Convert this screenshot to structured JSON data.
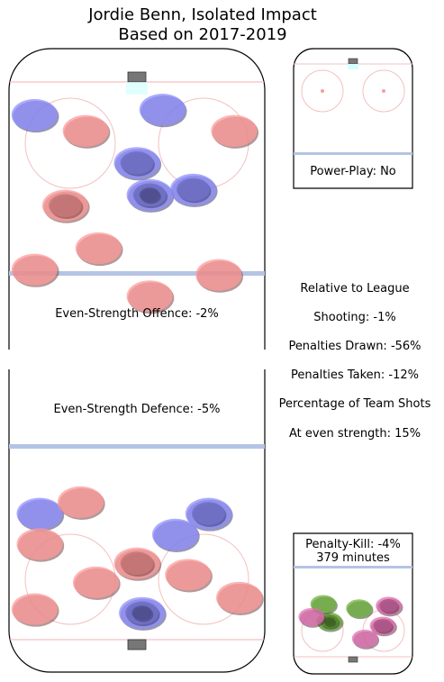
{
  "title_line1": "Jordie Benn, Isolated Impact",
  "title_line2": "Based on 2017-2019",
  "panels": {
    "offence_label": "Even-Strength Offence: -2%",
    "defence_label": "Even-Strength Defence: -5%",
    "powerplay_label": "Power-Play: No",
    "penaltykill_label": "Penalty-Kill: -4%",
    "penaltykill_minutes": "379 minutes"
  },
  "stats": {
    "header": "Relative to League",
    "shooting": "Shooting: -1%",
    "penalties_drawn": "Penalties Drawn: -56%",
    "penalties_taken": "Penalties Taken: -12%",
    "team_shots_header": "Percentage of Team Shots",
    "even_strength_share": "At even strength: 15%"
  },
  "colors": {
    "positive": "#ff9a9a",
    "negative": "#8f8fff",
    "pk_positive": "#e070b0",
    "pk_negative": "#70b040",
    "rink_line_blue": "#b4c4e4",
    "rink_line_red": "#f4c0c0"
  },
  "chart_data": {
    "type": "heatmap",
    "scale": "relative-to-league",
    "panels": [
      {
        "name": "Even-Strength Offence",
        "value_percent": -2,
        "blobs": [
          {
            "x": 0.1,
            "y": 0.12,
            "sign": -1,
            "level": 1
          },
          {
            "x": 0.3,
            "y": 0.18,
            "sign": 1,
            "level": 1
          },
          {
            "x": 0.55,
            "y": 0.42,
            "sign": -1,
            "level": 3
          },
          {
            "x": 0.5,
            "y": 0.3,
            "sign": -1,
            "level": 2
          },
          {
            "x": 0.72,
            "y": 0.4,
            "sign": -1,
            "level": 2
          },
          {
            "x": 0.22,
            "y": 0.46,
            "sign": 1,
            "level": 2
          },
          {
            "x": 0.88,
            "y": 0.18,
            "sign": 1,
            "level": 1
          },
          {
            "x": 0.6,
            "y": 0.1,
            "sign": -1,
            "level": 1
          },
          {
            "x": 0.35,
            "y": 0.62,
            "sign": 1,
            "level": 1
          },
          {
            "x": 0.55,
            "y": 0.8,
            "sign": 1,
            "level": 1
          },
          {
            "x": 0.82,
            "y": 0.72,
            "sign": 1,
            "level": 1
          },
          {
            "x": 0.1,
            "y": 0.7,
            "sign": 1,
            "level": 1
          }
        ]
      },
      {
        "name": "Even-Strength Defence",
        "value_percent": -5,
        "blobs": [
          {
            "x": 0.52,
            "y": 0.86,
            "sign": -1,
            "level": 3
          },
          {
            "x": 0.78,
            "y": 0.34,
            "sign": -1,
            "level": 2
          },
          {
            "x": 0.12,
            "y": 0.34,
            "sign": -1,
            "level": 1
          },
          {
            "x": 0.5,
            "y": 0.6,
            "sign": 1,
            "level": 2
          },
          {
            "x": 0.34,
            "y": 0.7,
            "sign": 1,
            "level": 1
          },
          {
            "x": 0.7,
            "y": 0.66,
            "sign": 1,
            "level": 1
          },
          {
            "x": 0.1,
            "y": 0.84,
            "sign": 1,
            "level": 1
          },
          {
            "x": 0.28,
            "y": 0.28,
            "sign": 1,
            "level": 1
          },
          {
            "x": 0.65,
            "y": 0.45,
            "sign": -1,
            "level": 1
          },
          {
            "x": 0.9,
            "y": 0.78,
            "sign": 1,
            "level": 1
          },
          {
            "x": 0.12,
            "y": 0.5,
            "sign": 1,
            "level": 1
          }
        ]
      },
      {
        "name": "Penalty-Kill",
        "value_percent": -4,
        "blobs": [
          {
            "x": 0.3,
            "y": 0.6,
            "sign": -1,
            "level": 3
          },
          {
            "x": 0.25,
            "y": 0.4,
            "sign": -1,
            "level": 1
          },
          {
            "x": 0.55,
            "y": 0.45,
            "sign": -1,
            "level": 1
          },
          {
            "x": 0.8,
            "y": 0.42,
            "sign": 1,
            "level": 2
          },
          {
            "x": 0.75,
            "y": 0.65,
            "sign": 1,
            "level": 2
          },
          {
            "x": 0.6,
            "y": 0.8,
            "sign": 1,
            "level": 1
          },
          {
            "x": 0.15,
            "y": 0.55,
            "sign": 1,
            "level": 1
          }
        ]
      }
    ]
  }
}
